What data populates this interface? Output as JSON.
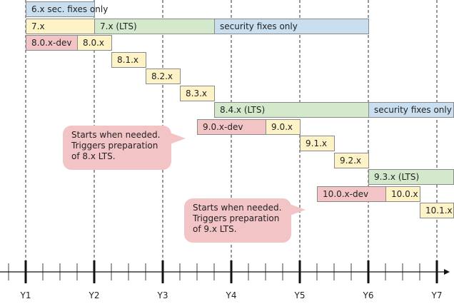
{
  "colors": {
    "sec": "#c9dff0",
    "minor": "#fdf3c6",
    "lts": "#d4e8cc",
    "dev": "#f3c4c6",
    "callout": "#f3c4c6",
    "grid": "#333333",
    "axis": "#111111"
  },
  "bars": [
    {
      "label": "6.x sec. fixes only",
      "kind": "sec",
      "row": 0,
      "start": 0.0,
      "end": 1.0
    },
    {
      "label": "7.x",
      "kind": "minor",
      "row": 1,
      "start": 0.0,
      "end": 1.0
    },
    {
      "label": "7.x (LTS)",
      "kind": "lts",
      "row": 1,
      "start": 1.0,
      "end": 2.75
    },
    {
      "label": "security fixes only",
      "kind": "sec",
      "row": 1,
      "start": 2.75,
      "end": 5.0
    },
    {
      "label": "8.0.x-dev",
      "kind": "dev",
      "row": 2,
      "start": 0.0,
      "end": 0.75
    },
    {
      "label": "8.0.x",
      "kind": "minor",
      "row": 2,
      "start": 0.75,
      "end": 1.25
    },
    {
      "label": "8.1.x",
      "kind": "minor",
      "row": 3,
      "start": 1.25,
      "end": 1.75
    },
    {
      "label": "8.2.x",
      "kind": "minor",
      "row": 4,
      "start": 1.75,
      "end": 2.25
    },
    {
      "label": "8.3.x",
      "kind": "minor",
      "row": 5,
      "start": 2.25,
      "end": 2.75
    },
    {
      "label": "8.4.x (LTS)",
      "kind": "lts",
      "row": 6,
      "start": 2.75,
      "end": 5.0
    },
    {
      "label": "security fixes only",
      "kind": "sec",
      "row": 6,
      "start": 5.0,
      "end": 6.25
    },
    {
      "label": "9.0.x-dev",
      "kind": "dev",
      "row": 7,
      "start": 2.5,
      "end": 3.5
    },
    {
      "label": "9.0.x",
      "kind": "minor",
      "row": 7,
      "start": 3.5,
      "end": 4.0
    },
    {
      "label": "9.1.x",
      "kind": "minor",
      "row": 8,
      "start": 4.0,
      "end": 4.5
    },
    {
      "label": "9.2.x",
      "kind": "minor",
      "row": 9,
      "start": 4.5,
      "end": 5.0
    },
    {
      "label": "9.3.x (LTS)",
      "kind": "lts",
      "row": 10,
      "start": 5.0,
      "end": 6.25
    },
    {
      "label": "10.0.x-dev",
      "kind": "dev",
      "row": 11,
      "start": 4.25,
      "end": 5.25
    },
    {
      "label": "10.0.x",
      "kind": "minor",
      "row": 11,
      "start": 5.25,
      "end": 5.75
    },
    {
      "label": "10.1.x",
      "kind": "minor",
      "row": 12,
      "start": 5.75,
      "end": 6.25
    }
  ],
  "callouts": [
    {
      "lines": [
        "Starts when needed.",
        "Triggers preparation",
        "of 8.x LTS."
      ]
    },
    {
      "lines": [
        "Starts when needed.",
        "Triggers preparation",
        "of 9.x LTS."
      ]
    }
  ],
  "axis": {
    "years": [
      "Y1",
      "Y2",
      "Y3",
      "Y4",
      "Y5",
      "Y6",
      "Y7"
    ],
    "subdivisions": 4
  }
}
